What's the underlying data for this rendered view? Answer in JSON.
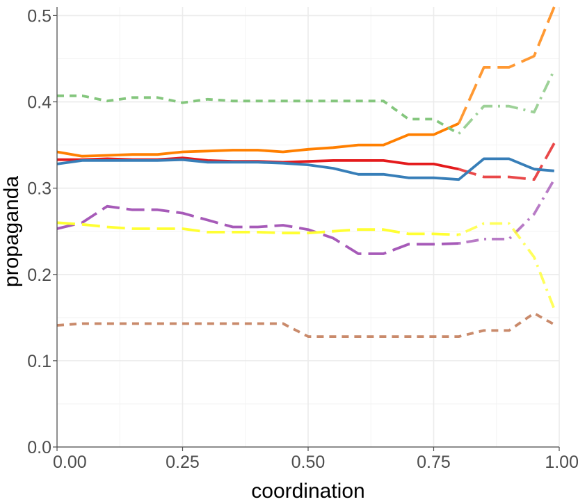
{
  "chart_data": {
    "type": "line",
    "xlabel": "coordination",
    "ylabel": "propaganda",
    "xlim": [
      0,
      1
    ],
    "ylim": [
      0,
      0.51
    ],
    "x_ticks": [
      "0.00",
      "0.25",
      "0.50",
      "0.75",
      "1.00"
    ],
    "y_ticks": [
      "0.0",
      "0.1",
      "0.2",
      "0.3",
      "0.4",
      "0.5"
    ],
    "grid": true,
    "legend": "none",
    "x": [
      0.0,
      0.05,
      0.1,
      0.15,
      0.2,
      0.25,
      0.3,
      0.35,
      0.4,
      0.45,
      0.5,
      0.55,
      0.6,
      0.65,
      0.7,
      0.75,
      0.8,
      0.85,
      0.9,
      0.95,
      0.99
    ],
    "series": [
      {
        "color": "#ff7f00",
        "dash": "solid-to-longdash",
        "values": [
          0.342,
          0.337,
          0.338,
          0.339,
          0.339,
          0.342,
          0.343,
          0.344,
          0.344,
          0.342,
          0.345,
          0.347,
          0.35,
          0.35,
          0.362,
          0.362,
          0.375,
          0.44,
          0.44,
          0.453,
          0.51
        ]
      },
      {
        "color": "#e41a1c",
        "dash": "solid-to-longdash",
        "values": [
          0.333,
          0.333,
          0.334,
          0.333,
          0.333,
          0.335,
          0.332,
          0.331,
          0.331,
          0.33,
          0.331,
          0.332,
          0.332,
          0.332,
          0.328,
          0.328,
          0.322,
          0.313,
          0.313,
          0.31,
          0.352
        ]
      },
      {
        "color": "#377eb8",
        "dash": "solid",
        "values": [
          0.328,
          0.332,
          0.332,
          0.332,
          0.332,
          0.333,
          0.33,
          0.33,
          0.33,
          0.329,
          0.327,
          0.323,
          0.316,
          0.316,
          0.312,
          0.312,
          0.31,
          0.334,
          0.334,
          0.322,
          0.32
        ]
      },
      {
        "color": "#84c67d",
        "dash": "dashed-to-dotdash",
        "values": [
          0.407,
          0.407,
          0.401,
          0.405,
          0.405,
          0.399,
          0.403,
          0.401,
          0.401,
          0.401,
          0.401,
          0.401,
          0.401,
          0.401,
          0.38,
          0.38,
          0.363,
          0.395,
          0.395,
          0.388,
          0.437
        ]
      },
      {
        "color": "#a65ab8",
        "dash": "longdash-to-dotdash",
        "values": [
          0.253,
          0.26,
          0.279,
          0.275,
          0.275,
          0.271,
          0.263,
          0.255,
          0.255,
          0.257,
          0.252,
          0.242,
          0.224,
          0.224,
          0.235,
          0.235,
          0.236,
          0.241,
          0.241,
          0.27,
          0.31
        ]
      },
      {
        "color": "#ffff33",
        "dash": "longdash-to-dotdash",
        "values": [
          0.26,
          0.258,
          0.255,
          0.253,
          0.253,
          0.253,
          0.249,
          0.249,
          0.249,
          0.248,
          0.248,
          0.25,
          0.252,
          0.252,
          0.247,
          0.247,
          0.246,
          0.259,
          0.259,
          0.22,
          0.16
        ]
      },
      {
        "color": "#c98a6b",
        "dash": "dashed",
        "values": [
          0.141,
          0.143,
          0.143,
          0.143,
          0.143,
          0.143,
          0.143,
          0.143,
          0.143,
          0.143,
          0.128,
          0.128,
          0.128,
          0.128,
          0.128,
          0.128,
          0.128,
          0.135,
          0.135,
          0.155,
          0.142
        ]
      }
    ]
  }
}
